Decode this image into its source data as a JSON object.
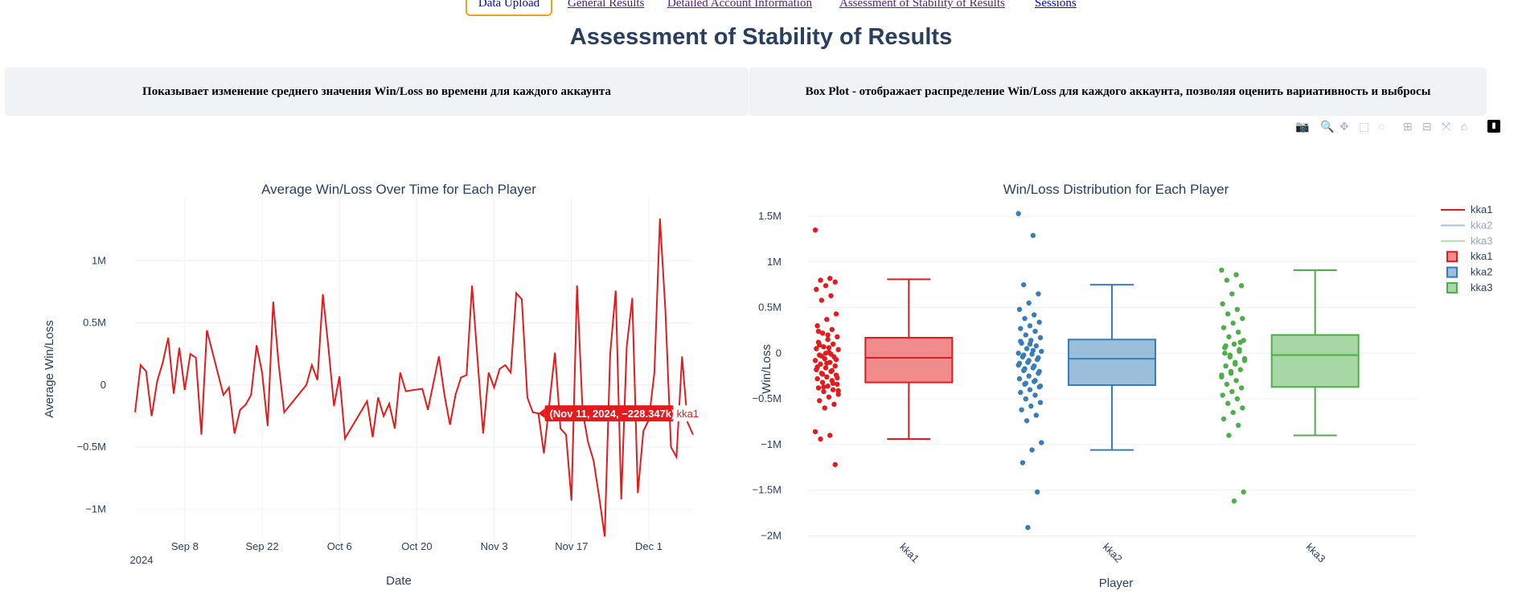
{
  "nav": {
    "items": [
      {
        "label": "Data Upload",
        "active": true
      },
      {
        "label": "General Results"
      },
      {
        "label": "Detailed Account Information"
      },
      {
        "label": "Assessment of Stability of Results"
      },
      {
        "label": "Sessions"
      }
    ]
  },
  "page_title": "Assessment of Stability of Results",
  "descriptions": {
    "left": "Показывает изменение среднего значения Win/Loss во времени для каждого аккаунта",
    "right": "Box Plot - отображает распределение Win/Loss для каждого аккаунта, позволяя оценить вариативность и выбросы"
  },
  "modebar": {
    "icons": [
      "camera-icon",
      "zoom-icon",
      "pan-icon",
      "box-select-icon",
      "lasso-icon",
      "zoom-in-icon",
      "zoom-out-icon",
      "autoscale-icon",
      "reset-axes-icon",
      "plotly-logo-icon"
    ]
  },
  "colors": {
    "kka1": "#e41a1c",
    "kka2": "#377eb8",
    "kka3": "#4daf4a",
    "title": "#2a3f5f"
  },
  "chart_data": [
    {
      "type": "line",
      "title": "Average Win/Loss Over Time for Each Player",
      "xlabel": "Date",
      "ylabel": "Average Win/Loss",
      "x_ticks": [
        "Sep 8",
        "Sep 22",
        "Oct 6",
        "Oct 20",
        "Nov 3",
        "Nov 17",
        "Dec 1"
      ],
      "x_tick_year": "2024",
      "y_ticks": [
        "1M",
        "0.5M",
        "0",
        "−0.5M",
        "−1M"
      ],
      "y_tick_values": [
        1000000,
        500000,
        0,
        -500000,
        -1000000
      ],
      "xlim": [
        "2024-08-30",
        "2024-12-09"
      ],
      "ylim": [
        -1250000,
        1500000
      ],
      "series": [
        {
          "name": "kka1",
          "points": [
            [
              "2024-08-30",
              -220000
            ],
            [
              "2024-08-31",
              160000
            ],
            [
              "2024-09-01",
              110000
            ],
            [
              "2024-09-02",
              -250000
            ],
            [
              "2024-09-03",
              30000
            ],
            [
              "2024-09-04",
              180000
            ],
            [
              "2024-09-05",
              380000
            ],
            [
              "2024-09-06",
              -70000
            ],
            [
              "2024-09-07",
              300000
            ],
            [
              "2024-09-08",
              -40000
            ],
            [
              "2024-09-09",
              250000
            ],
            [
              "2024-09-10",
              220000
            ],
            [
              "2024-09-11",
              -400000
            ],
            [
              "2024-09-12",
              440000
            ],
            [
              "2024-09-15",
              -80000
            ],
            [
              "2024-09-16",
              -20000
            ],
            [
              "2024-09-17",
              -390000
            ],
            [
              "2024-09-18",
              -200000
            ],
            [
              "2024-09-19",
              -160000
            ],
            [
              "2024-09-20",
              -80000
            ],
            [
              "2024-09-21",
              320000
            ],
            [
              "2024-09-22",
              100000
            ],
            [
              "2024-09-23",
              -330000
            ],
            [
              "2024-09-24",
              670000
            ],
            [
              "2024-09-25",
              160000
            ],
            [
              "2024-09-26",
              -220000
            ],
            [
              "2024-09-30",
              0
            ],
            [
              "2024-10-01",
              160000
            ],
            [
              "2024-10-02",
              40000
            ],
            [
              "2024-10-03",
              730000
            ],
            [
              "2024-10-04",
              300000
            ],
            [
              "2024-10-05",
              -170000
            ],
            [
              "2024-10-06",
              70000
            ],
            [
              "2024-10-07",
              -430000
            ],
            [
              "2024-10-11",
              -130000
            ],
            [
              "2024-10-12",
              -420000
            ],
            [
              "2024-10-13",
              -100000
            ],
            [
              "2024-10-14",
              -250000
            ],
            [
              "2024-10-15",
              -150000
            ],
            [
              "2024-10-16",
              -350000
            ],
            [
              "2024-10-17",
              100000
            ],
            [
              "2024-10-18",
              -50000
            ],
            [
              "2024-10-21",
              -30000
            ],
            [
              "2024-10-22",
              -200000
            ],
            [
              "2024-10-24",
              230000
            ],
            [
              "2024-10-25",
              -80000
            ],
            [
              "2024-10-26",
              -320000
            ],
            [
              "2024-10-27",
              -80000
            ],
            [
              "2024-10-28",
              60000
            ],
            [
              "2024-10-29",
              80000
            ],
            [
              "2024-10-30",
              800000
            ],
            [
              "2024-10-31",
              200000
            ],
            [
              "2024-11-01",
              -390000
            ],
            [
              "2024-11-02",
              100000
            ],
            [
              "2024-11-03",
              -20000
            ],
            [
              "2024-11-04",
              130000
            ],
            [
              "2024-11-05",
              160000
            ],
            [
              "2024-11-06",
              100000
            ],
            [
              "2024-11-07",
              740000
            ],
            [
              "2024-11-08",
              690000
            ],
            [
              "2024-11-09",
              -100000
            ],
            [
              "2024-11-10",
              -220000
            ],
            [
              "2024-11-11",
              -228347
            ],
            [
              "2024-11-12",
              -550000
            ],
            [
              "2024-11-13",
              -150000
            ],
            [
              "2024-11-14",
              260000
            ],
            [
              "2024-11-15",
              -350000
            ],
            [
              "2024-11-16",
              -400000
            ],
            [
              "2024-11-17",
              -930000
            ],
            [
              "2024-11-18",
              800000
            ],
            [
              "2024-11-19",
              -210000
            ],
            [
              "2024-11-20",
              -460000
            ],
            [
              "2024-11-21",
              -610000
            ],
            [
              "2024-11-22",
              -900000
            ],
            [
              "2024-11-23",
              -1220000
            ],
            [
              "2024-11-24",
              250000
            ],
            [
              "2024-11-25",
              760000
            ],
            [
              "2024-11-26",
              -920000
            ],
            [
              "2024-11-27",
              310000
            ],
            [
              "2024-11-28",
              700000
            ],
            [
              "2024-11-29",
              -870000
            ],
            [
              "2024-11-30",
              -370000
            ],
            [
              "2024-12-01",
              -280000
            ],
            [
              "2024-12-02",
              100000
            ],
            [
              "2024-12-03",
              1340000
            ],
            [
              "2024-12-04",
              600000
            ],
            [
              "2024-12-05",
              -500000
            ],
            [
              "2024-12-06",
              -580000
            ],
            [
              "2024-12-07",
              230000
            ],
            [
              "2024-12-08",
              -300000
            ],
            [
              "2024-12-09",
              -400000
            ]
          ]
        }
      ],
      "hover": {
        "label": "(Nov 11, 2024, −228.347k)",
        "series": "kka1",
        "x": "2024-11-11",
        "y": -228347
      }
    },
    {
      "type": "box",
      "title": "Win/Loss Distribution for Each Player",
      "xlabel": "Player",
      "ylabel": "Win/Loss",
      "categories": [
        "kka1",
        "kka2",
        "kka3"
      ],
      "y_ticks": [
        "1.5M",
        "1M",
        "0.5M",
        "0",
        "−0.5M",
        "−1M",
        "−1.5M",
        "−2M"
      ],
      "y_tick_values": [
        1500000,
        1000000,
        500000,
        0,
        -500000,
        -1000000,
        -1500000,
        -2000000
      ],
      "ylim": [
        -2050000,
        1650000
      ],
      "boxes": [
        {
          "name": "kka1",
          "lower_fence": -940000,
          "q1": -320000,
          "median": -50000,
          "q3": 170000,
          "upper_fence": 810000,
          "points": [
            1350000,
            820000,
            800000,
            780000,
            740000,
            700000,
            630000,
            580000,
            430000,
            370000,
            300000,
            260000,
            220000,
            180000,
            150000,
            120000,
            100000,
            70000,
            40000,
            10000,
            -20000,
            -40000,
            -60000,
            -80000,
            -100000,
            -120000,
            -140000,
            -160000,
            -180000,
            -200000,
            -220000,
            -240000,
            -260000,
            -280000,
            -300000,
            -320000,
            -340000,
            -360000,
            -380000,
            -400000,
            -420000,
            -450000,
            -480000,
            -520000,
            -560000,
            -600000,
            -860000,
            -900000,
            -940000,
            -1220000,
            0,
            50000,
            -10000,
            -30000,
            -70000,
            -110000,
            -150000,
            -190000,
            -230000,
            -270000,
            200000,
            240000,
            -330000,
            -370000,
            -410000,
            60000,
            90000
          ]
        },
        {
          "name": "kka2",
          "lower_fence": -1060000,
          "q1": -350000,
          "median": -60000,
          "q3": 150000,
          "upper_fence": 750000,
          "points": [
            1530000,
            1290000,
            750000,
            650000,
            550000,
            480000,
            420000,
            380000,
            340000,
            300000,
            270000,
            240000,
            200000,
            170000,
            140000,
            110000,
            80000,
            50000,
            20000,
            -10000,
            -40000,
            -70000,
            -100000,
            -130000,
            -160000,
            -190000,
            -220000,
            -250000,
            -280000,
            -310000,
            -340000,
            -370000,
            -400000,
            -430000,
            -460000,
            -500000,
            -540000,
            -580000,
            -620000,
            -680000,
            -740000,
            -980000,
            -1060000,
            -1200000,
            -1520000,
            -1910000,
            0,
            30000,
            -20000,
            -50000,
            -80000,
            -110000,
            -140000,
            -170000,
            -200000,
            100000,
            130000,
            -300000,
            -330000,
            -360000
          ]
        },
        {
          "name": "kka3",
          "lower_fence": -900000,
          "q1": -370000,
          "median": -20000,
          "q3": 200000,
          "upper_fence": 910000,
          "points": [
            910000,
            860000,
            800000,
            740000,
            650000,
            540000,
            480000,
            430000,
            380000,
            330000,
            280000,
            230000,
            180000,
            140000,
            100000,
            60000,
            20000,
            -20000,
            -60000,
            -100000,
            -140000,
            -180000,
            -220000,
            -260000,
            -300000,
            -340000,
            -380000,
            -420000,
            -460000,
            -500000,
            -550000,
            -600000,
            -650000,
            -720000,
            -790000,
            -900000,
            -1520000,
            -1620000,
            0,
            40000,
            -40000,
            -80000,
            -120000,
            80000,
            120000,
            -200000,
            -240000
          ]
        }
      ],
      "legend": {
        "placement": "top-right",
        "entries": [
          {
            "label": "kka1",
            "kind": "line",
            "color": "#e41a1c"
          },
          {
            "label": "kka2",
            "kind": "line",
            "color": "#a6c3dd"
          },
          {
            "label": "kka3",
            "kind": "line",
            "color": "#b3dcb0"
          },
          {
            "label": "kka1",
            "kind": "box",
            "color": "#e41a1c"
          },
          {
            "label": "kka2",
            "kind": "box",
            "color": "#377eb8"
          },
          {
            "label": "kka3",
            "kind": "box",
            "color": "#4daf4a"
          }
        ]
      }
    }
  ]
}
